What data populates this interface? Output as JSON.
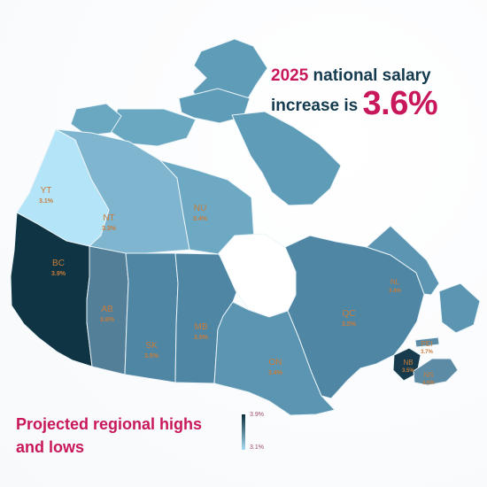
{
  "headline": {
    "year": "2025",
    "middle": " national salary increase is ",
    "value": "3.6%"
  },
  "subtitle": "Projected regional highs and lows",
  "legend": {
    "high": "3.9%",
    "low": "3.1%"
  },
  "regions": [
    {
      "code": "YT",
      "value": "3.1%"
    },
    {
      "code": "NT",
      "value": "3.3%"
    },
    {
      "code": "NU",
      "value": "3.4%"
    },
    {
      "code": "BC",
      "value": "3.9%"
    },
    {
      "code": "AB",
      "value": "3.6%"
    },
    {
      "code": "SK",
      "value": "3.5%"
    },
    {
      "code": "MB",
      "value": "3.5%"
    },
    {
      "code": "ON",
      "value": "3.4%"
    },
    {
      "code": "QC",
      "value": "3.5%"
    },
    {
      "code": "NL",
      "value": "3.4%"
    },
    {
      "code": "PEI",
      "value": "3.7%"
    },
    {
      "code": "NB",
      "value": "3.5%"
    },
    {
      "code": "NS",
      "value": "3.5%"
    }
  ],
  "colors": {
    "headline_dark": "#143a4f",
    "accent": "#c8185b",
    "high": "#0b2e3d",
    "low": "#a7dbf2",
    "label": "#c97c3a"
  }
}
